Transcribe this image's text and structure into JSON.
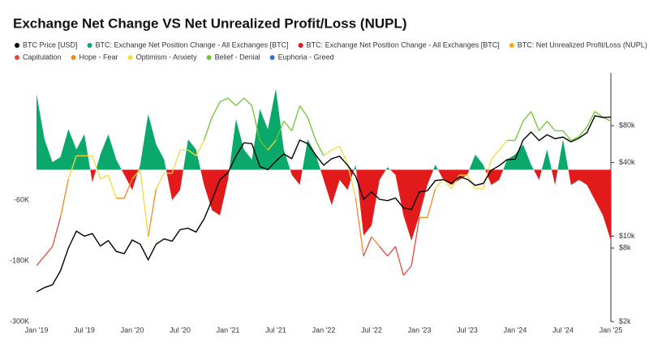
{
  "chart_data": {
    "type": "combo",
    "title": "Exchange Net Change VS Net Unrealized Profit/Loss (NUPL)",
    "x": [
      "2019-01",
      "2019-02",
      "2019-03",
      "2019-04",
      "2019-05",
      "2019-06",
      "2019-07",
      "2019-08",
      "2019-09",
      "2019-10",
      "2019-11",
      "2019-12",
      "2020-01",
      "2020-02",
      "2020-03",
      "2020-04",
      "2020-05",
      "2020-06",
      "2020-07",
      "2020-08",
      "2020-09",
      "2020-10",
      "2020-11",
      "2020-12",
      "2021-01",
      "2021-02",
      "2021-03",
      "2021-04",
      "2021-05",
      "2021-06",
      "2021-07",
      "2021-08",
      "2021-09",
      "2021-10",
      "2021-11",
      "2021-12",
      "2022-01",
      "2022-02",
      "2022-03",
      "2022-04",
      "2022-05",
      "2022-06",
      "2022-07",
      "2022-08",
      "2022-09",
      "2022-10",
      "2022-11",
      "2022-12",
      "2023-01",
      "2023-02",
      "2023-03",
      "2023-04",
      "2023-05",
      "2023-06",
      "2023-07",
      "2023-08",
      "2023-09",
      "2023-10",
      "2023-11",
      "2023-12",
      "2024-01",
      "2024-02",
      "2024-03",
      "2024-04",
      "2024-05",
      "2024-06",
      "2024-07",
      "2024-08",
      "2024-09",
      "2024-10",
      "2024-11",
      "2024-12",
      "2025-01"
    ],
    "xticks": [
      {
        "value": "2019-01",
        "label": "Jan '19"
      },
      {
        "value": "2019-07",
        "label": "Jul '19"
      },
      {
        "value": "2020-01",
        "label": "Jan '20"
      },
      {
        "value": "2020-07",
        "label": "Jul '20"
      },
      {
        "value": "2021-01",
        "label": "Jan '21"
      },
      {
        "value": "2021-07",
        "label": "Jul '21"
      },
      {
        "value": "2022-01",
        "label": "Jan '22"
      },
      {
        "value": "2022-07",
        "label": "Jul '22"
      },
      {
        "value": "2023-01",
        "label": "Jan '23"
      },
      {
        "value": "2023-07",
        "label": "Jul '23"
      },
      {
        "value": "2024-01",
        "label": "Jan '24"
      },
      {
        "value": "2024-07",
        "label": "Jul '24"
      },
      {
        "value": "2025-01",
        "label": "Jan '25"
      }
    ],
    "ylim": [
      -300000,
      191200
    ],
    "yticks": [
      {
        "value": -300000,
        "label": "-300K"
      },
      {
        "value": -180000,
        "label": "-180K"
      },
      {
        "value": -60000,
        "label": "-60K"
      }
    ],
    "y2lim": [
      2000,
      216000
    ],
    "y2scale": "log",
    "y2ticks": [
      {
        "value": 2000,
        "label": "$2k"
      },
      {
        "value": 8000,
        "label": "$8k"
      },
      {
        "value": 10000,
        "label": "$10k"
      },
      {
        "value": 40000,
        "label": "$40k"
      },
      {
        "value": 80000,
        "label": "$80k"
      }
    ],
    "y3lim": [
      -0.44,
      0.85
    ],
    "series": [
      {
        "name": "BTC Price [USD]",
        "color": "#000000",
        "axis": "y2",
        "kind": "line",
        "values": [
          3500,
          3800,
          4000,
          5200,
          8000,
          11000,
          10000,
          10500,
          8300,
          9200,
          7500,
          7200,
          9300,
          8600,
          6400,
          8600,
          9500,
          9100,
          11300,
          11600,
          10800,
          13800,
          19700,
          29000,
          33000,
          45000,
          58000,
          57000,
          37000,
          35000,
          41000,
          47000,
          43000,
          61000,
          57000,
          46000,
          38000,
          43000,
          45000,
          38000,
          31000,
          20000,
          23000,
          20000,
          19500,
          20500,
          17000,
          16500,
          23000,
          23500,
          28500,
          29000,
          27000,
          30500,
          29200,
          26000,
          27000,
          34500,
          37700,
          42300,
          42500,
          61000,
          71000,
          60500,
          67500,
          62700,
          64600,
          59000,
          63300,
          70200,
          96400,
          93400,
          94000
        ]
      },
      {
        "name": "BTC: Exchange Net Position Change - All Exchanges [BTC]",
        "color": "#0aa86b",
        "kind": "area",
        "negative": {
          "name": "BTC: Exchange Net Position Change - All Exchanges [BTC]",
          "color": "#e31a1c"
        },
        "values": [
          150000,
          60000,
          15000,
          25000,
          80000,
          40000,
          70000,
          -25000,
          30000,
          70000,
          20000,
          -10000,
          -40000,
          10000,
          110000,
          50000,
          20000,
          -60000,
          -40000,
          60000,
          40000,
          -30000,
          -80000,
          -90000,
          -20000,
          100000,
          40000,
          20000,
          120000,
          80000,
          160000,
          40000,
          -10000,
          -30000,
          60000,
          30000,
          -20000,
          -70000,
          -20000,
          -40000,
          10000,
          -130000,
          -110000,
          -20000,
          5000,
          -10000,
          -90000,
          -140000,
          -90000,
          -30000,
          10000,
          -20000,
          -30000,
          -20000,
          -10000,
          30000,
          10000,
          -30000,
          -20000,
          20000,
          30000,
          50000,
          10000,
          -20000,
          40000,
          -30000,
          60000,
          -30000,
          -20000,
          -30000,
          -60000,
          -90000,
          -140000
        ]
      },
      {
        "name": "BTC: Net Unrealized Profit/Loss (NUPL)",
        "color": "#f5a623",
        "axis": "y3",
        "kind": "zoned",
        "values": [
          -0.15,
          -0.1,
          -0.05,
          0.1,
          0.3,
          0.42,
          0.42,
          0.42,
          0.3,
          0.32,
          0.2,
          0.2,
          0.3,
          0.35,
          0.0,
          0.25,
          0.33,
          0.33,
          0.45,
          0.45,
          0.42,
          0.5,
          0.62,
          0.7,
          0.72,
          0.68,
          0.72,
          0.68,
          0.5,
          0.45,
          0.5,
          0.6,
          0.55,
          0.68,
          0.62,
          0.5,
          0.42,
          0.45,
          0.47,
          0.38,
          0.2,
          -0.1,
          0.0,
          -0.05,
          -0.1,
          -0.05,
          -0.2,
          -0.15,
          0.1,
          0.1,
          0.25,
          0.3,
          0.25,
          0.32,
          0.32,
          0.25,
          0.25,
          0.4,
          0.45,
          0.5,
          0.5,
          0.6,
          0.65,
          0.55,
          0.6,
          0.55,
          0.55,
          0.5,
          0.52,
          0.57,
          0.65,
          0.62,
          0.6
        ]
      }
    ],
    "zones": [
      {
        "name": "Capitulation",
        "color": "#e04b3a",
        "max": 0
      },
      {
        "name": "Hope - Fear",
        "color": "#f08a24",
        "max": 0.25
      },
      {
        "name": "Optimism - Anxiety",
        "color": "#f2dc3a",
        "max": 0.5
      },
      {
        "name": "Belief - Denial",
        "color": "#6cc72e",
        "max": 0.75
      },
      {
        "name": "Euphoria - Greed",
        "color": "#2f6fdf",
        "max": 1
      }
    ]
  }
}
